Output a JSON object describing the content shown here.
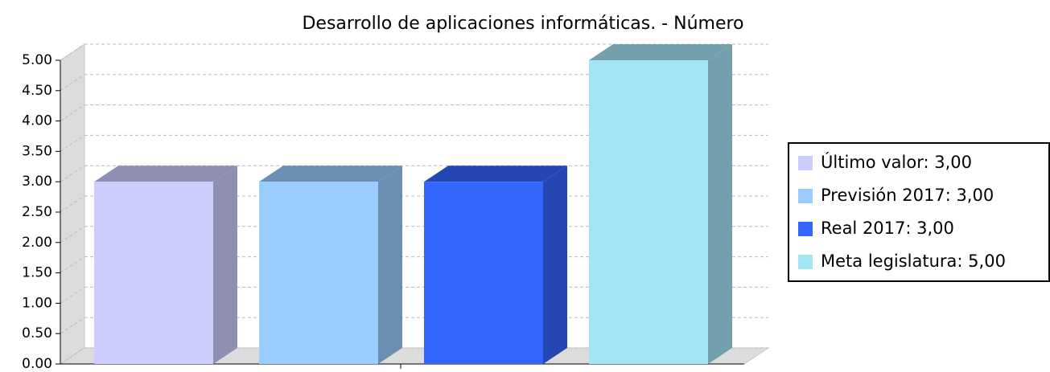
{
  "chart_data": {
    "type": "bar3d",
    "title": "Desarrollo de aplicaciones informáticas. - Número",
    "series": [
      {
        "name": "Último valor: 3,00",
        "color": "#ccccff",
        "values": [
          3
        ]
      },
      {
        "name": "Previsión 2017: 3,00",
        "color": "#99ccff",
        "values": [
          3
        ]
      },
      {
        "name": "Real 2017: 3,00",
        "color": "#3366ff",
        "values": [
          3
        ]
      },
      {
        "name": "Meta legislatura: 5,00",
        "color": "#a3e4f5",
        "values": [
          5
        ]
      }
    ],
    "ylim": [
      0,
      5
    ],
    "yticks": [
      {
        "value": 0,
        "label": "0.00"
      },
      {
        "value": 0.5,
        "label": "0.50"
      },
      {
        "value": 1,
        "label": "1.00"
      },
      {
        "value": 1.5,
        "label": "1.50"
      },
      {
        "value": 2,
        "label": "2.00"
      },
      {
        "value": 2.5,
        "label": "2.50"
      },
      {
        "value": 3,
        "label": "3.00"
      },
      {
        "value": 3.5,
        "label": "3.50"
      },
      {
        "value": 4,
        "label": "4.00"
      },
      {
        "value": 4.5,
        "label": "4.50"
      },
      {
        "value": 5,
        "label": "5.00"
      }
    ],
    "grid": true,
    "legend": "right"
  }
}
